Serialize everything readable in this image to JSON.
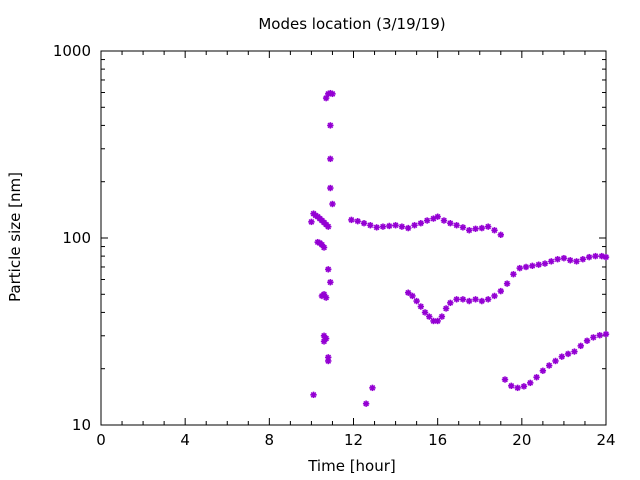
{
  "chart_data": {
    "type": "scatter",
    "title": "Modes location (3/19/19)",
    "xlabel": "Time [hour]",
    "ylabel": "Particle size [nm]",
    "xlim": [
      0,
      24
    ],
    "ylim": [
      10,
      1000
    ],
    "yscale": "log",
    "grid": false,
    "legend": "none",
    "marker": "asterisk",
    "color": "#9400d3",
    "x_ticks": [
      0,
      4,
      8,
      12,
      16,
      20,
      24
    ],
    "x_tick_labels": [
      "0",
      "4",
      "8",
      "12",
      "16",
      "20",
      "24"
    ],
    "y_ticks": [
      10,
      100,
      1000
    ],
    "y_tick_labels": [
      "10",
      "100",
      "1000"
    ],
    "series": [
      {
        "values": [
          [
            10.0,
            122
          ],
          [
            10.1,
            135
          ],
          [
            10.2,
            132
          ],
          [
            10.3,
            130
          ],
          [
            10.4,
            127
          ],
          [
            10.5,
            124
          ],
          [
            10.6,
            121
          ],
          [
            10.7,
            118
          ],
          [
            10.8,
            115
          ],
          [
            11.0,
            152
          ],
          [
            10.3,
            95
          ],
          [
            10.4,
            94
          ],
          [
            10.5,
            92
          ],
          [
            10.6,
            89
          ],
          [
            10.6,
            50
          ],
          [
            10.7,
            48
          ],
          [
            10.5,
            49
          ],
          [
            10.6,
            30
          ],
          [
            10.7,
            29
          ],
          [
            10.6,
            28
          ],
          [
            10.8,
            23
          ],
          [
            10.8,
            22
          ],
          [
            10.8,
            68
          ],
          [
            10.9,
            58
          ],
          [
            10.1,
            14.5
          ],
          [
            10.7,
            560
          ],
          [
            10.8,
            590
          ],
          [
            10.9,
            595
          ],
          [
            11.0,
            590
          ],
          [
            10.9,
            400
          ],
          [
            10.9,
            265
          ],
          [
            10.9,
            185
          ],
          [
            12.6,
            13.0
          ],
          [
            12.9,
            15.8
          ],
          [
            11.9,
            125
          ],
          [
            12.2,
            123
          ],
          [
            12.5,
            120
          ],
          [
            12.8,
            117
          ],
          [
            13.1,
            114
          ],
          [
            13.4,
            115
          ],
          [
            13.7,
            116
          ],
          [
            14.0,
            117
          ],
          [
            14.3,
            115
          ],
          [
            14.6,
            113
          ],
          [
            14.9,
            117
          ],
          [
            15.2,
            120
          ],
          [
            15.5,
            124
          ],
          [
            15.8,
            127
          ],
          [
            16.0,
            130
          ],
          [
            16.3,
            124
          ],
          [
            16.6,
            120
          ],
          [
            16.9,
            117
          ],
          [
            17.2,
            114
          ],
          [
            17.5,
            110
          ],
          [
            17.8,
            112
          ],
          [
            18.1,
            113
          ],
          [
            18.4,
            115
          ],
          [
            18.7,
            110
          ],
          [
            19.0,
            104
          ],
          [
            14.6,
            51
          ],
          [
            14.8,
            49
          ],
          [
            15.0,
            46
          ],
          [
            15.2,
            43
          ],
          [
            15.4,
            40
          ],
          [
            15.6,
            38
          ],
          [
            15.8,
            36
          ],
          [
            16.0,
            36
          ],
          [
            16.2,
            38
          ],
          [
            16.4,
            42
          ],
          [
            16.6,
            45
          ],
          [
            16.9,
            47
          ],
          [
            17.2,
            47
          ],
          [
            17.5,
            46
          ],
          [
            17.8,
            47
          ],
          [
            18.1,
            46
          ],
          [
            18.4,
            47
          ],
          [
            18.7,
            49
          ],
          [
            19.0,
            52
          ],
          [
            19.3,
            57
          ],
          [
            19.6,
            64
          ],
          [
            19.9,
            69
          ],
          [
            20.2,
            70
          ],
          [
            20.5,
            71
          ],
          [
            20.8,
            72
          ],
          [
            21.1,
            73
          ],
          [
            21.4,
            75
          ],
          [
            21.7,
            77
          ],
          [
            22.0,
            78
          ],
          [
            22.3,
            76
          ],
          [
            22.6,
            75
          ],
          [
            22.9,
            77
          ],
          [
            23.2,
            79
          ],
          [
            23.5,
            80
          ],
          [
            23.8,
            80
          ],
          [
            24.0,
            79
          ],
          [
            19.2,
            17.5
          ],
          [
            19.5,
            16.2
          ],
          [
            19.8,
            15.8
          ],
          [
            20.1,
            16.1
          ],
          [
            20.4,
            16.8
          ],
          [
            20.7,
            18.0
          ],
          [
            21.0,
            19.5
          ],
          [
            21.3,
            20.8
          ],
          [
            21.6,
            22.0
          ],
          [
            21.9,
            23.2
          ],
          [
            22.2,
            24.0
          ],
          [
            22.5,
            24.7
          ],
          [
            22.8,
            26.5
          ],
          [
            23.1,
            28.2
          ],
          [
            23.4,
            29.4
          ],
          [
            23.7,
            30.2
          ],
          [
            24.0,
            30.6
          ]
        ]
      }
    ]
  }
}
